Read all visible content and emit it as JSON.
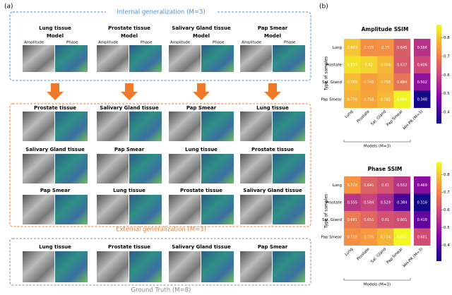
{
  "panel_a": {
    "label": "(a)",
    "internal_title": "Internal generalization (M=3)",
    "models": [
      "Lung tissue",
      "Prostate tissue",
      "Salivary Gland tissue",
      "Pap Smear"
    ],
    "model_word": "Model",
    "amplitude": "Amplitude",
    "phase": "Phase",
    "external_rows": [
      [
        "Prostate tissue",
        "Salivary Gland tissue",
        "Pap Smear",
        "Lung tissue"
      ],
      [
        "Salivary Gland tissue",
        "Pap Smear",
        "Lung tissue",
        "Prostate tissue"
      ],
      [
        "Pap Smear",
        "Lung tissue",
        "Prostate tissue",
        "Salivary Gland tissue"
      ]
    ],
    "external_title": "External generalization (M=3)",
    "ground_truth": [
      "Lung tissue",
      "Prostate tissue",
      "Salivary Gland tissue",
      "Pap Smear"
    ],
    "ground_truth_title": "Ground Truth (M=8)"
  },
  "panel_b": {
    "label": "(b)",
    "y_label": "Type of samples",
    "x_label": "Models (M=3)",
    "heatmaps": [
      {
        "type": "heatmap",
        "title": "Amplitude SSIM",
        "rows": [
          "Lung",
          "Prostate",
          "Sal. Gland",
          "Pap Smear"
        ],
        "columns": [
          "Lung",
          "Prostate",
          "Sal. Gland",
          "Pap Smear",
          "MH-PR (M=3)"
        ],
        "values": [
          [
            0.803,
            0.725,
            0.73,
            0.645,
            0.566
          ],
          [
            0.837,
            0.82,
            0.784,
            0.637,
            0.606
          ],
          [
            0.789,
            0.749,
            0.768,
            0.684,
            0.502
          ],
          [
            0.776,
            0.756,
            0.785,
            0.864,
            0.348
          ]
        ],
        "clim": [
          0.34,
          0.87
        ],
        "cticks": [
          0.4,
          0.5,
          0.6,
          0.7,
          0.8
        ],
        "colormap": "plasma"
      },
      {
        "type": "heatmap",
        "title": "Phase SSIM",
        "rows": [
          "Lung",
          "Prostate",
          "Sal. Gland",
          "Pap Smear"
        ],
        "columns": [
          "Lung",
          "Prostate",
          "Sal. Gland",
          "Pap Smear",
          "MH-PR (M=3)"
        ],
        "values": [
          [
            0.728,
            0.641,
            0.61,
            0.552,
            0.469
          ],
          [
            0.555,
            0.584,
            0.529,
            0.384,
            0.316
          ],
          [
            0.681,
            0.651,
            0.61,
            0.601,
            0.418
          ],
          [
            0.718,
            0.736,
            0.774,
            0.867,
            0.601
          ]
        ],
        "clim": [
          0.31,
          0.87
        ],
        "cticks": [
          0.4,
          0.5,
          0.6,
          0.7,
          0.8
        ],
        "colormap": "plasma"
      }
    ]
  }
}
